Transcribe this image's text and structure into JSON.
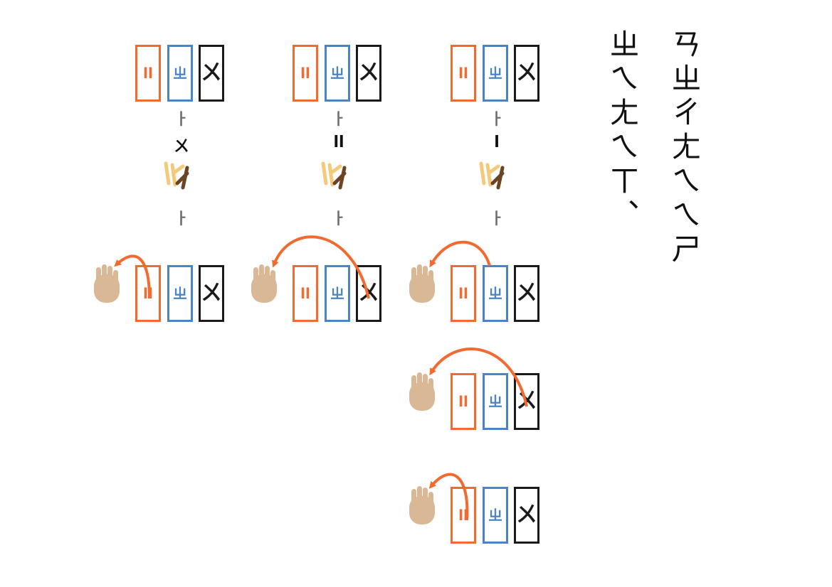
{
  "colors": {
    "orange": "#f26a2f",
    "blue": "#4a84c6",
    "black": "#1a1a1a",
    "hand": "#d9b896",
    "arrow_gray": "#6f6f6f",
    "stick_light": "#f3c97a",
    "stick_dark": "#6b4423"
  },
  "tile_glyphs": {
    "orange": "ll",
    "blue": "ㄓ",
    "black": "ㄨ"
  },
  "step_arrow_glyph": "ㅏ",
  "columns": [
    {
      "step_label": "ㄨ",
      "extra_rows": 0
    },
    {
      "step_label": "ll",
      "extra_rows": 0
    },
    {
      "step_label": "l",
      "extra_rows": 2
    }
  ],
  "vertical_text": {
    "left": "ㄓㄟㄤㄟㄒ、",
    "right": "ㄢㄓㄔㄤㄟㄟㄕ"
  },
  "icons": [
    "hand-icon",
    "curved-arrow-icon",
    "sticks-icon"
  ]
}
